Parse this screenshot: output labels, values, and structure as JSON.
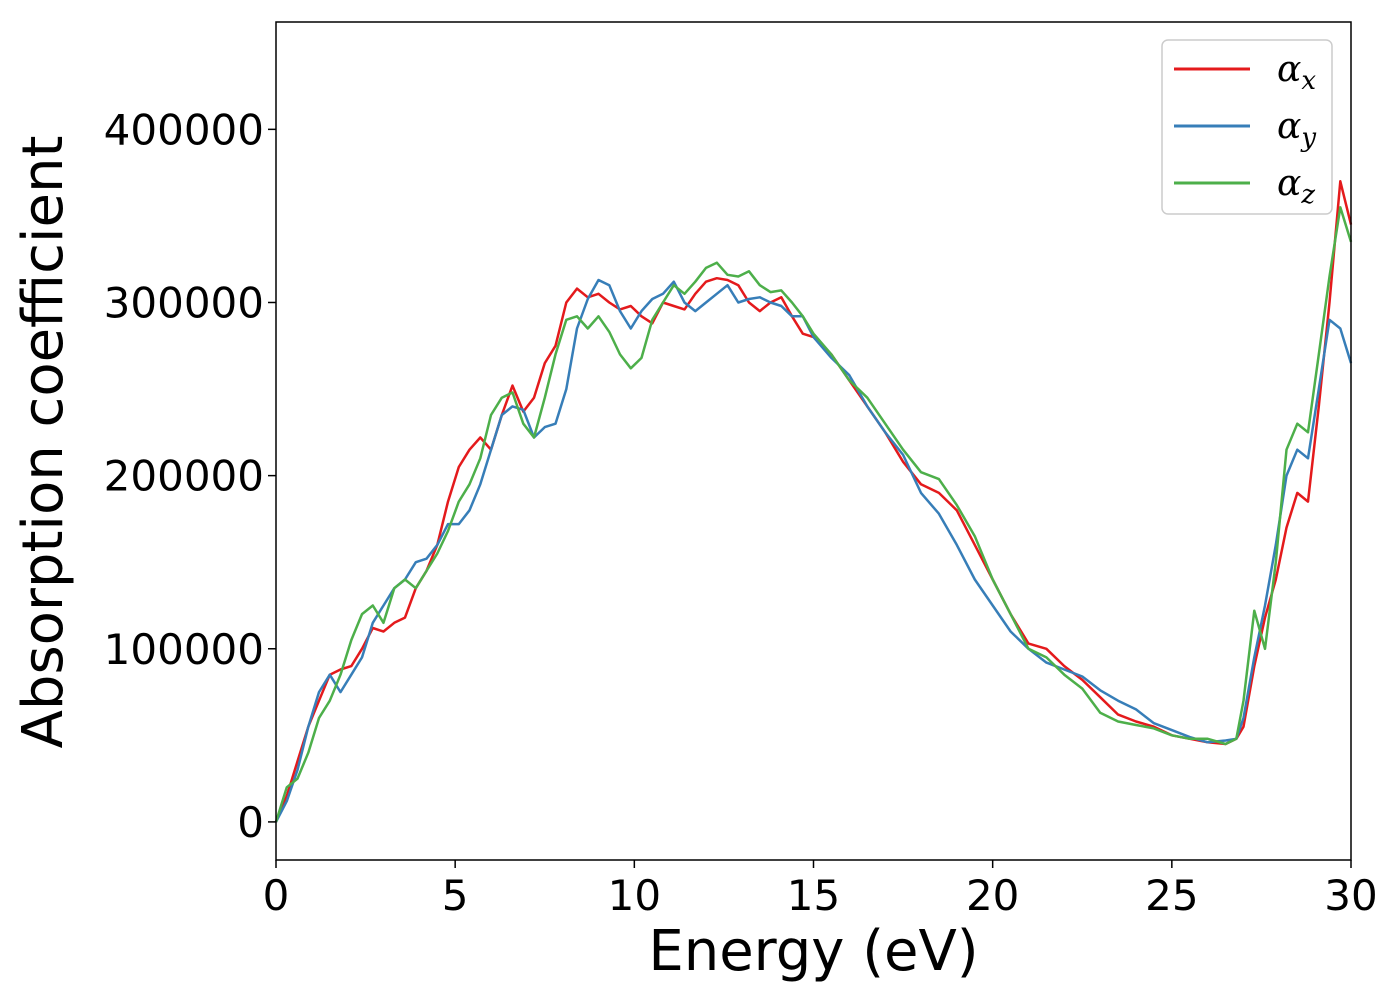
{
  "chart_data": {
    "type": "line",
    "title": "",
    "xlabel": "Energy (eV)",
    "ylabel": "Absorption coefficient",
    "xlim": [
      0,
      30
    ],
    "ylim": [
      -22000,
      462000
    ],
    "xticks": [
      0,
      5,
      10,
      15,
      20,
      25,
      30
    ],
    "yticks": [
      0,
      100000,
      200000,
      300000,
      400000
    ],
    "grid": false,
    "legend": {
      "placement": "top-right"
    },
    "series": [
      {
        "name": "x",
        "legend_symbol": "α",
        "color": "#e41a1c",
        "x": [
          0,
          0.3,
          0.6,
          0.9,
          1.2,
          1.5,
          1.8,
          2.1,
          2.4,
          2.7,
          3.0,
          3.3,
          3.6,
          3.9,
          4.2,
          4.5,
          4.8,
          5.1,
          5.4,
          5.7,
          6.0,
          6.3,
          6.6,
          6.9,
          7.2,
          7.5,
          7.8,
          8.1,
          8.4,
          8.7,
          9.0,
          9.3,
          9.6,
          9.9,
          10.2,
          10.5,
          10.8,
          11.1,
          11.4,
          11.7,
          12.0,
          12.3,
          12.6,
          12.9,
          13.2,
          13.5,
          13.8,
          14.1,
          14.4,
          14.7,
          15.0,
          15.5,
          16.0,
          16.5,
          17.0,
          17.5,
          18.0,
          18.5,
          19.0,
          19.5,
          20.0,
          20.5,
          21.0,
          21.5,
          22.0,
          22.5,
          23.0,
          23.5,
          24.0,
          24.5,
          25.0,
          25.5,
          26.0,
          26.5,
          26.8,
          27.0,
          27.3,
          27.6,
          27.9,
          28.2,
          28.5,
          28.8,
          29.1,
          29.4,
          29.7,
          30.0
        ],
        "y": [
          0,
          15000,
          35000,
          55000,
          70000,
          85000,
          88000,
          90000,
          100000,
          112000,
          110000,
          115000,
          118000,
          135000,
          145000,
          160000,
          185000,
          205000,
          215000,
          222000,
          215000,
          235000,
          252000,
          237000,
          245000,
          265000,
          275000,
          300000,
          308000,
          303000,
          305000,
          300000,
          296000,
          298000,
          292000,
          288000,
          300000,
          298000,
          296000,
          305000,
          312000,
          314000,
          313000,
          310000,
          300000,
          295000,
          300000,
          303000,
          292000,
          282000,
          280000,
          270000,
          255000,
          240000,
          225000,
          208000,
          195000,
          190000,
          180000,
          160000,
          140000,
          120000,
          103000,
          100000,
          90000,
          82000,
          72000,
          62000,
          58000,
          55000,
          50000,
          48000,
          46000,
          45000,
          48000,
          55000,
          90000,
          118000,
          140000,
          170000,
          190000,
          185000,
          240000,
          300000,
          370000,
          345000
        ]
      },
      {
        "name": "y",
        "legend_symbol": "α",
        "color": "#377eb8",
        "x": [
          0,
          0.3,
          0.6,
          0.9,
          1.2,
          1.5,
          1.8,
          2.1,
          2.4,
          2.7,
          3.0,
          3.3,
          3.6,
          3.9,
          4.2,
          4.5,
          4.8,
          5.1,
          5.4,
          5.7,
          6.0,
          6.3,
          6.6,
          6.9,
          7.2,
          7.5,
          7.8,
          8.1,
          8.4,
          8.7,
          9.0,
          9.3,
          9.6,
          9.9,
          10.2,
          10.5,
          10.8,
          11.1,
          11.4,
          11.7,
          12.0,
          12.3,
          12.6,
          12.9,
          13.2,
          13.5,
          13.8,
          14.1,
          14.4,
          14.7,
          15.0,
          15.5,
          16.0,
          16.5,
          17.0,
          17.5,
          18.0,
          18.5,
          19.0,
          19.5,
          20.0,
          20.5,
          21.0,
          21.5,
          22.0,
          22.5,
          23.0,
          23.5,
          24.0,
          24.5,
          25.0,
          25.5,
          26.0,
          26.5,
          26.8,
          27.0,
          27.3,
          27.6,
          27.9,
          28.2,
          28.5,
          28.8,
          29.1,
          29.4,
          29.7,
          30.0
        ],
        "y": [
          0,
          12000,
          30000,
          55000,
          75000,
          85000,
          75000,
          85000,
          95000,
          115000,
          125000,
          135000,
          140000,
          150000,
          152000,
          160000,
          172000,
          172000,
          180000,
          195000,
          215000,
          235000,
          240000,
          238000,
          222000,
          228000,
          230000,
          250000,
          285000,
          302000,
          313000,
          310000,
          295000,
          285000,
          295000,
          302000,
          305000,
          312000,
          300000,
          295000,
          300000,
          305000,
          310000,
          300000,
          302000,
          303000,
          300000,
          298000,
          292000,
          292000,
          280000,
          268000,
          258000,
          240000,
          225000,
          212000,
          190000,
          178000,
          160000,
          140000,
          125000,
          110000,
          100000,
          92000,
          88000,
          84000,
          76000,
          70000,
          65000,
          57000,
          53000,
          49000,
          46000,
          47000,
          48000,
          60000,
          95000,
          125000,
          160000,
          200000,
          215000,
          210000,
          250000,
          290000,
          285000,
          265000
        ]
      },
      {
        "name": "z",
        "legend_symbol": "α",
        "color": "#4daf4a",
        "x": [
          0,
          0.3,
          0.6,
          0.9,
          1.2,
          1.5,
          1.8,
          2.1,
          2.4,
          2.7,
          3.0,
          3.3,
          3.6,
          3.9,
          4.2,
          4.5,
          4.8,
          5.1,
          5.4,
          5.7,
          6.0,
          6.3,
          6.6,
          6.9,
          7.2,
          7.5,
          7.8,
          8.1,
          8.4,
          8.7,
          9.0,
          9.3,
          9.6,
          9.9,
          10.2,
          10.5,
          10.8,
          11.1,
          11.4,
          11.7,
          12.0,
          12.3,
          12.6,
          12.9,
          13.2,
          13.5,
          13.8,
          14.1,
          14.4,
          14.7,
          15.0,
          15.5,
          16.0,
          16.5,
          17.0,
          17.5,
          18.0,
          18.5,
          19.0,
          19.5,
          20.0,
          20.5,
          21.0,
          21.5,
          22.0,
          22.5,
          23.0,
          23.5,
          24.0,
          24.5,
          25.0,
          25.5,
          26.0,
          26.5,
          26.8,
          27.0,
          27.3,
          27.6,
          27.9,
          28.2,
          28.5,
          28.8,
          29.1,
          29.4,
          29.7,
          30.0
        ],
        "y": [
          0,
          20000,
          25000,
          40000,
          60000,
          70000,
          85000,
          105000,
          120000,
          125000,
          115000,
          135000,
          140000,
          135000,
          145000,
          155000,
          168000,
          185000,
          195000,
          210000,
          235000,
          245000,
          248000,
          230000,
          222000,
          245000,
          270000,
          290000,
          292000,
          285000,
          292000,
          283000,
          270000,
          262000,
          268000,
          290000,
          300000,
          310000,
          305000,
          312000,
          320000,
          323000,
          316000,
          315000,
          318000,
          310000,
          306000,
          307000,
          300000,
          292000,
          282000,
          270000,
          255000,
          245000,
          230000,
          215000,
          202000,
          198000,
          183000,
          165000,
          140000,
          120000,
          100000,
          95000,
          85000,
          77000,
          63000,
          58000,
          56000,
          54000,
          50000,
          48000,
          48000,
          45000,
          48000,
          70000,
          122000,
          100000,
          150000,
          215000,
          230000,
          225000,
          270000,
          315000,
          355000,
          335000
        ]
      }
    ]
  }
}
